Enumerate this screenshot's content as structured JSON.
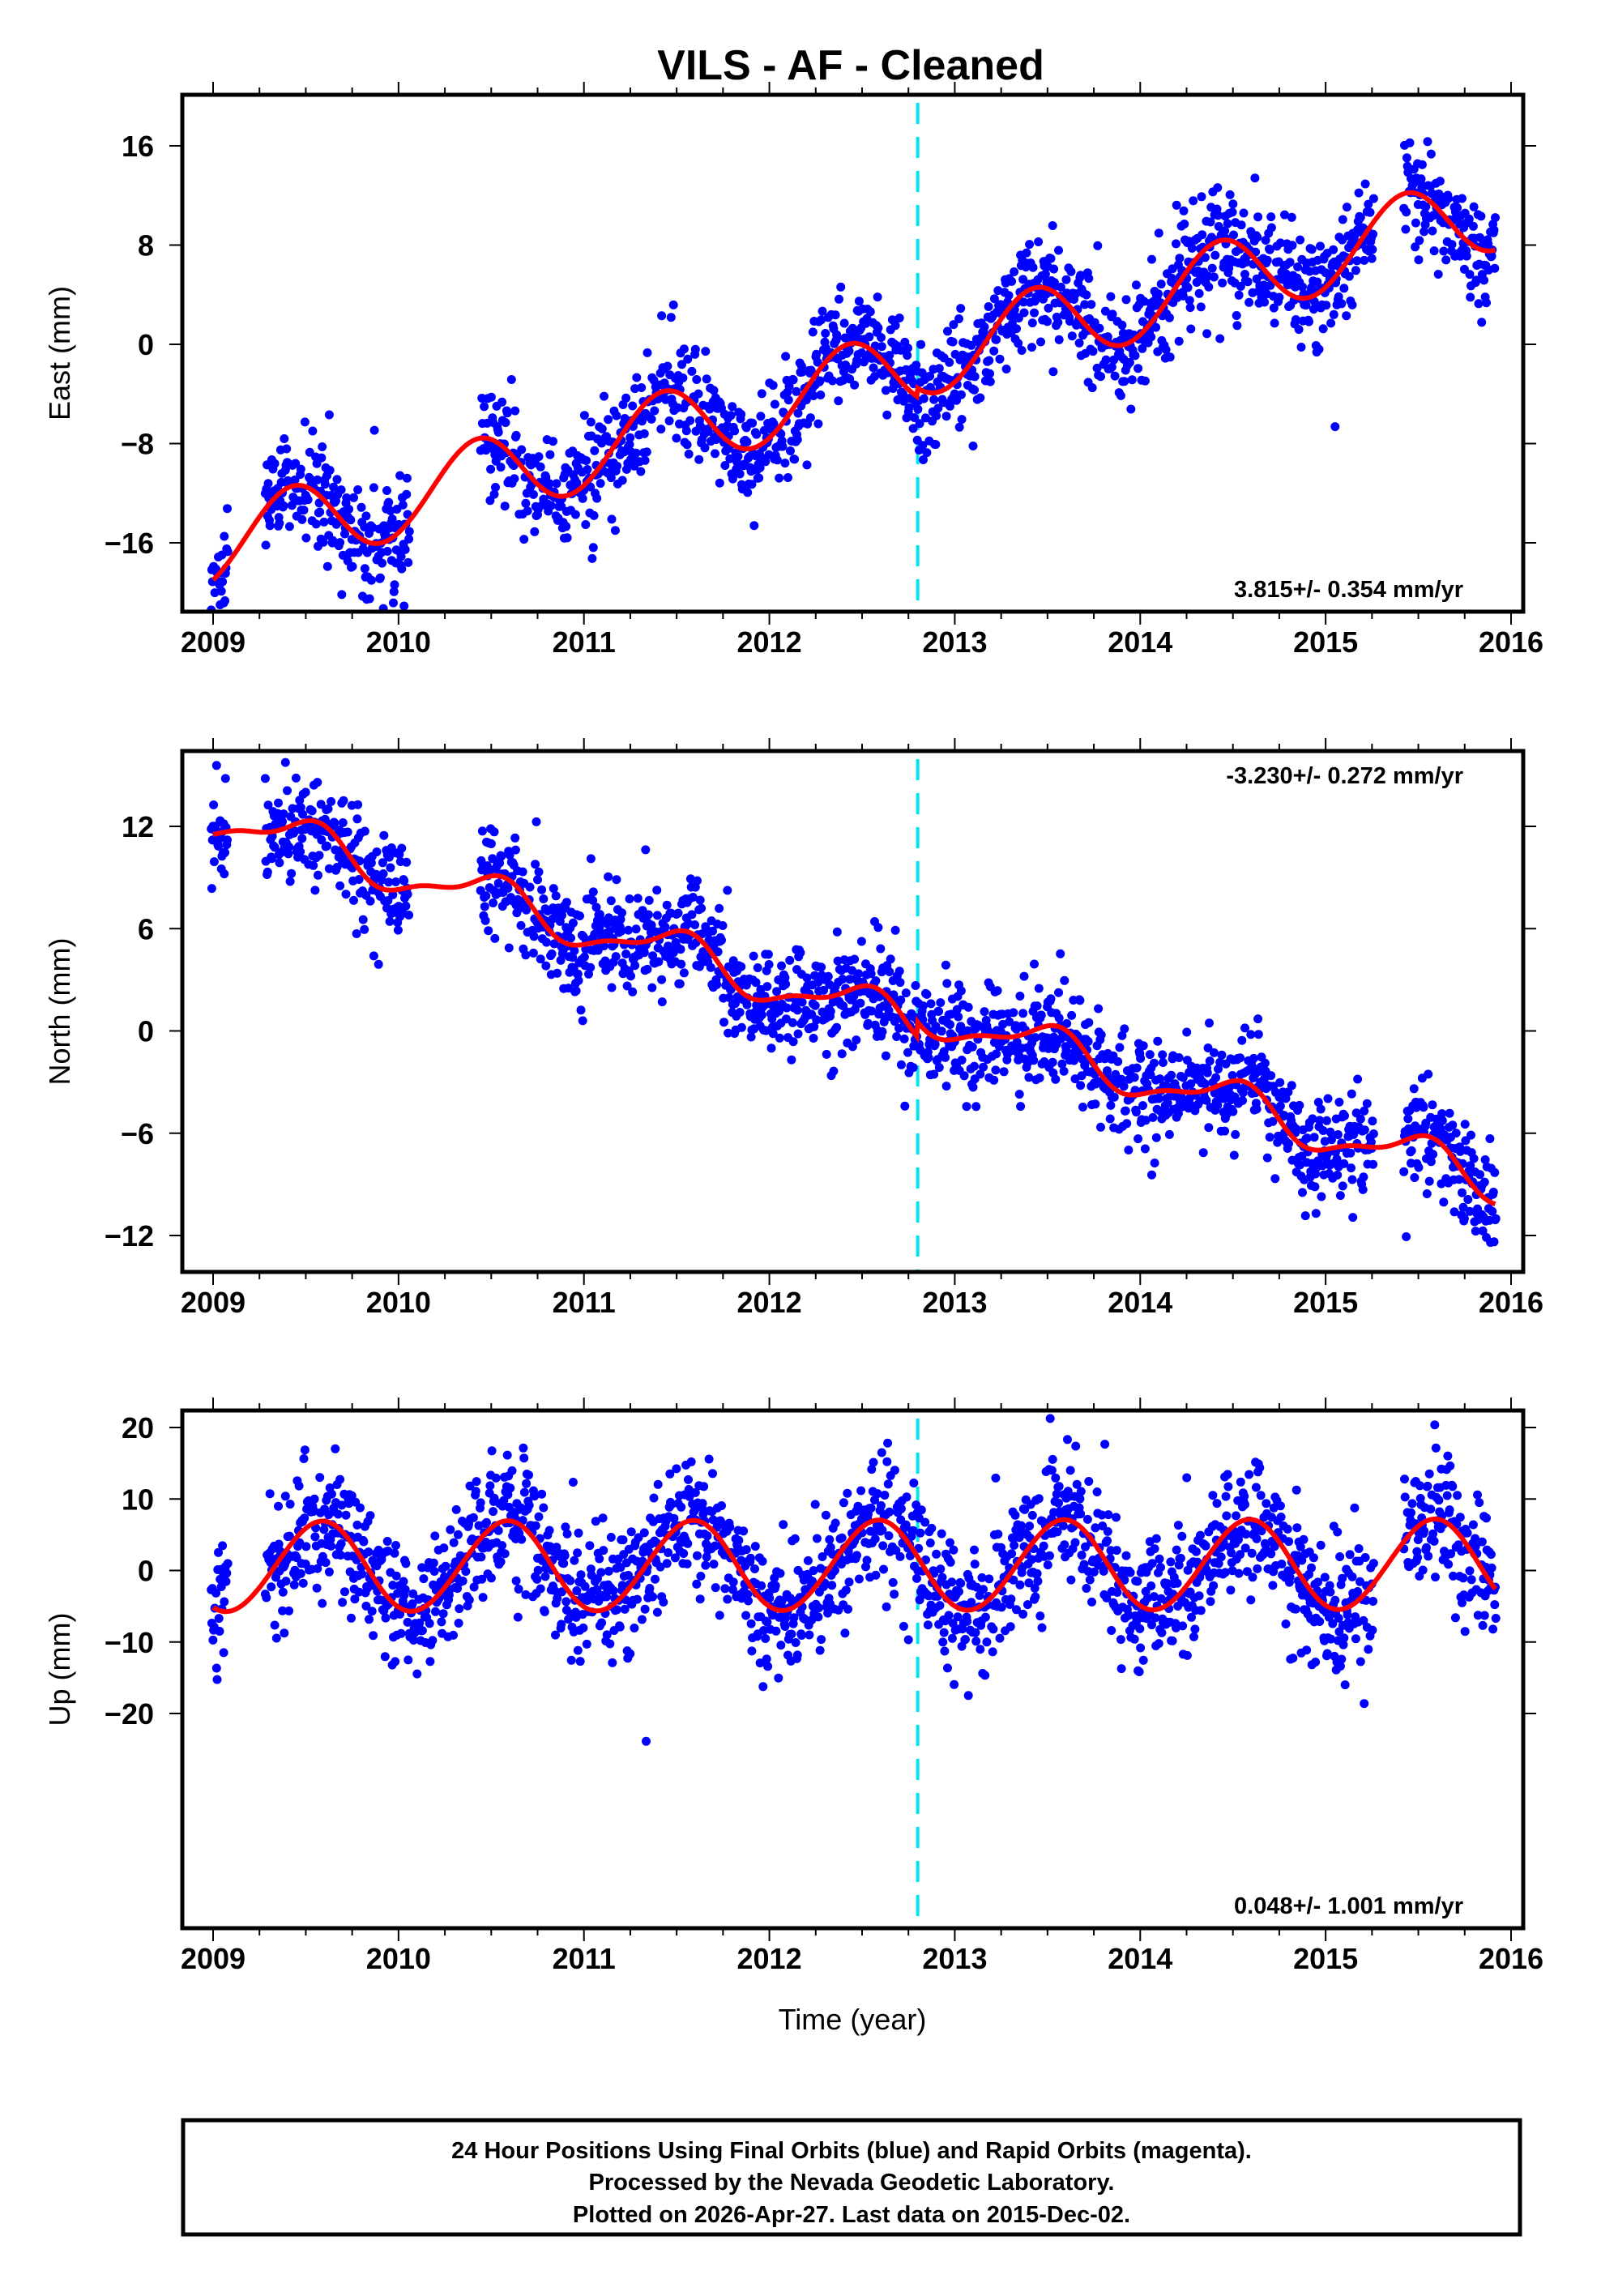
{
  "chart_data": {
    "type": "scatter",
    "title": "VILS  - AF - Cleaned",
    "xlabel": "Time (year)",
    "xlim": [
      2008.9,
      2016.03
    ],
    "x_ticks": [
      2009,
      2010,
      2011,
      2012,
      2013,
      2014,
      2015,
      2016
    ],
    "x_tick_labels": [
      "2009",
      "2010",
      "2011",
      "2012",
      "2013",
      "2014",
      "2015",
      "2016"
    ],
    "x_minor_tick_step": 0.25,
    "grid": false,
    "colors": {
      "points": "#0000ff",
      "model_fit": "#ff0000",
      "event_line": "#00e5ee",
      "frame": "#000000"
    },
    "event_line": {
      "x": 2012.8,
      "style": "dashed"
    },
    "panels": [
      {
        "id": "east",
        "ylabel": "East (mm)",
        "ylim": [
          -21.5,
          21
        ],
        "y_ticks": [
          16,
          8,
          0,
          -8,
          -16
        ],
        "y_tick_labels": [
          "16",
          "8",
          "0",
          "−8",
          "−16"
        ],
        "rate_text": "3.815+/- 0.354 mm/yr",
        "rate_position": "bottom-right",
        "series_points": {
          "name": "Final Orbits (blue)",
          "gaps": [
            [
              2009.08,
              2009.28
            ],
            [
              2010.06,
              2010.44
            ],
            [
              2015.26,
              2015.42
            ]
          ],
          "segments_mean_mm": [
            {
              "x": 2009.0,
              "y": -14.5
            },
            {
              "x": 2009.4,
              "y": -10
            },
            {
              "x": 2009.7,
              "y": -11.5
            },
            {
              "x": 2010.0,
              "y": -13
            },
            {
              "x": 2010.5,
              "y": -6.5
            },
            {
              "x": 2010.9,
              "y": -8.5
            },
            {
              "x": 2011.3,
              "y": -3.5
            },
            {
              "x": 2011.5,
              "y": -2.5
            },
            {
              "x": 2011.9,
              "y": -4.5
            },
            {
              "x": 2012.4,
              "y": 1.5
            },
            {
              "x": 2012.8,
              "y": -1.5
            },
            {
              "x": 2013.1,
              "y": 0
            },
            {
              "x": 2013.4,
              "y": 5.5
            },
            {
              "x": 2013.9,
              "y": 3.5
            },
            {
              "x": 2014.4,
              "y": 9
            },
            {
              "x": 2014.9,
              "y": 7
            },
            {
              "x": 2015.2,
              "y": 10
            },
            {
              "x": 2015.5,
              "y": 13
            },
            {
              "x": 2015.9,
              "y": 11
            }
          ],
          "scatter_mm": 2.2
        },
        "model_fit": {
          "offset_mm": -16.3,
          "rate_mm_yr": 3.815,
          "annual_amp_mm": 3.2,
          "annual_phase_peak": 0.42,
          "step_at": 2012.8,
          "step_mm": 0.7,
          "x_end": 2015.92
        }
      },
      {
        "id": "north",
        "ylabel": "North (mm)",
        "ylim": [
          -14.5,
          16.8
        ],
        "y_ticks": [
          12,
          6,
          0,
          -6,
          -12
        ],
        "y_tick_labels": [
          "12",
          "6",
          "0",
          "−6",
          "−12"
        ],
        "rate_text": "-3.230+/- 0.272 mm/yr",
        "rate_position": "top-right",
        "series_points": {
          "name": "Final Orbits (blue)",
          "gaps": [
            [
              2009.08,
              2009.28
            ],
            [
              2010.06,
              2010.44
            ],
            [
              2015.26,
              2015.42
            ]
          ],
          "scatter_mm": 1.5
        },
        "model_fit": {
          "offset_mm": 12.6,
          "rate_mm_yr": -3.23,
          "annual_amp_mm": 1.2,
          "annual_phase_peak": 0.5,
          "step_at": 2012.8,
          "step_mm": 0.9,
          "x_end": 2015.92
        }
      },
      {
        "id": "up",
        "ylabel": "Up (mm)",
        "ylim": [
          -28,
          22.5
        ],
        "y_ticks": [
          20,
          10,
          0,
          -10,
          -20
        ],
        "y_tick_labels": [
          "20",
          "10",
          "0",
          "−10",
          "−20"
        ],
        "rate_text": "0.048+/- 1.001 mm/yr",
        "rate_position": "bottom-right",
        "series_points": {
          "name": "Final Orbits (blue)",
          "gaps": [
            [
              2009.08,
              2009.28
            ],
            [
              2015.26,
              2015.42
            ]
          ],
          "scatter_mm": 4.5
        },
        "model_fit": {
          "offset_mm": 0.5,
          "rate_mm_yr": 0.048,
          "annual_amp_mm": 6.3,
          "annual_phase_peak": 0.58,
          "step_at": 2012.8,
          "step_mm": 0,
          "x_end": 2015.92
        }
      }
    ]
  },
  "footer": {
    "line1": "24 Hour Positions Using Final Orbits (blue) and Rapid Orbits (magenta).",
    "line2": "Processed by the Nevada Geodetic Laboratory.",
    "line3": "Plotted on 2026-Apr-27. Last data on 2015-Dec-02."
  }
}
